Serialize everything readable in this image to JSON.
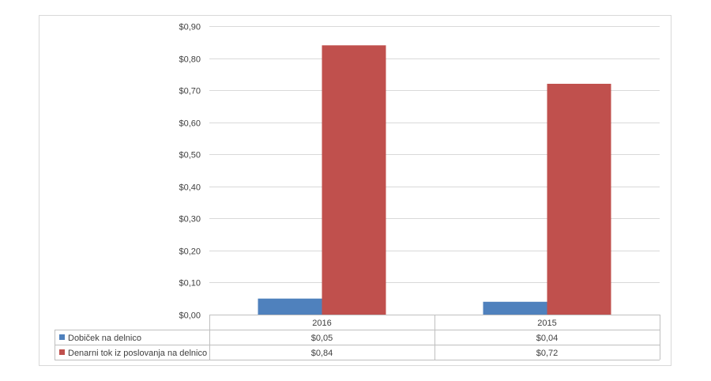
{
  "chart_data": {
    "type": "bar",
    "title": "",
    "xlabel": "",
    "ylabel": "",
    "categories": [
      "2016",
      "2015"
    ],
    "series": [
      {
        "name": "Dobiček na delnico",
        "color": "#4f81bd",
        "values": [
          0.05,
          0.04
        ],
        "labels": [
          "$0,05",
          "$0,04"
        ]
      },
      {
        "name": "Denarni tok iz poslovanja na delnico",
        "color": "#c0504d",
        "values": [
          0.84,
          0.72
        ],
        "labels": [
          "$0,84",
          "$0,72"
        ]
      }
    ],
    "ylim": [
      0,
      0.9
    ],
    "yticks": [
      0,
      0.1,
      0.2,
      0.3,
      0.4,
      0.5,
      0.6,
      0.7,
      0.8,
      0.9
    ],
    "ytick_labels": [
      "$0,00",
      "$0,10",
      "$0,20",
      "$0,30",
      "$0,40",
      "$0,50",
      "$0,60",
      "$0,70",
      "$0,80",
      "$0,90"
    ],
    "grid": true,
    "legend": "data-table-bottom"
  }
}
